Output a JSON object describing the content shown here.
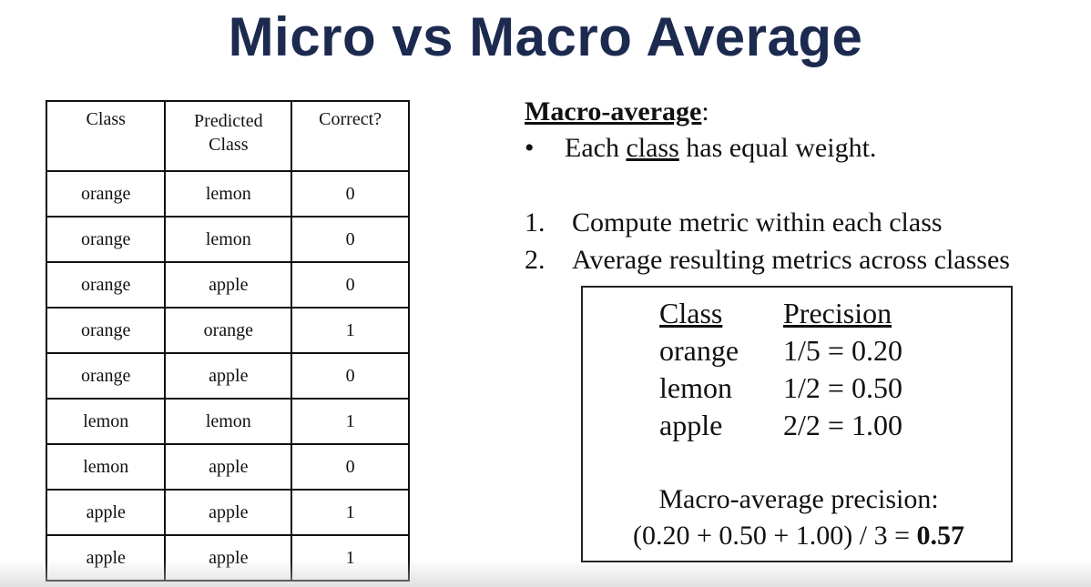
{
  "title": "Micro vs Macro Average",
  "table": {
    "headers": [
      "Class",
      "Predicted Class",
      "Correct?"
    ],
    "header_lines": {
      "predicted_1": "Predicted",
      "predicted_2": "Class"
    },
    "rows": [
      [
        "orange",
        "lemon",
        "0"
      ],
      [
        "orange",
        "lemon",
        "0"
      ],
      [
        "orange",
        "apple",
        "0"
      ],
      [
        "orange",
        "orange",
        "1"
      ],
      [
        "orange",
        "apple",
        "0"
      ],
      [
        "lemon",
        "lemon",
        "1"
      ],
      [
        "lemon",
        "apple",
        "0"
      ],
      [
        "apple",
        "apple",
        "1"
      ],
      [
        "apple",
        "apple",
        "1"
      ]
    ]
  },
  "macro": {
    "heading": "Macro-average",
    "heading_colon": ":",
    "bullet_symbol": "•",
    "bullet_pre": "Each ",
    "bullet_underlined": "class",
    "bullet_post": " has equal weight.",
    "steps": [
      {
        "num": "1.",
        "text": "Compute metric within each class"
      },
      {
        "num": "2.",
        "text": "Average resulting metrics across classes"
      }
    ]
  },
  "box": {
    "col_class": "Class",
    "col_precision": "Precision",
    "rows": [
      {
        "cls": "orange",
        "prec": "1/5 = 0.20"
      },
      {
        "cls": "lemon",
        "prec": "1/2 = 0.50"
      },
      {
        "cls": "apple",
        "prec": "2/2 = 1.00"
      }
    ],
    "label": "Macro-average precision:",
    "formula": "(0.20 + 0.50 + 1.00) / 3 = ",
    "result": "0.57"
  }
}
